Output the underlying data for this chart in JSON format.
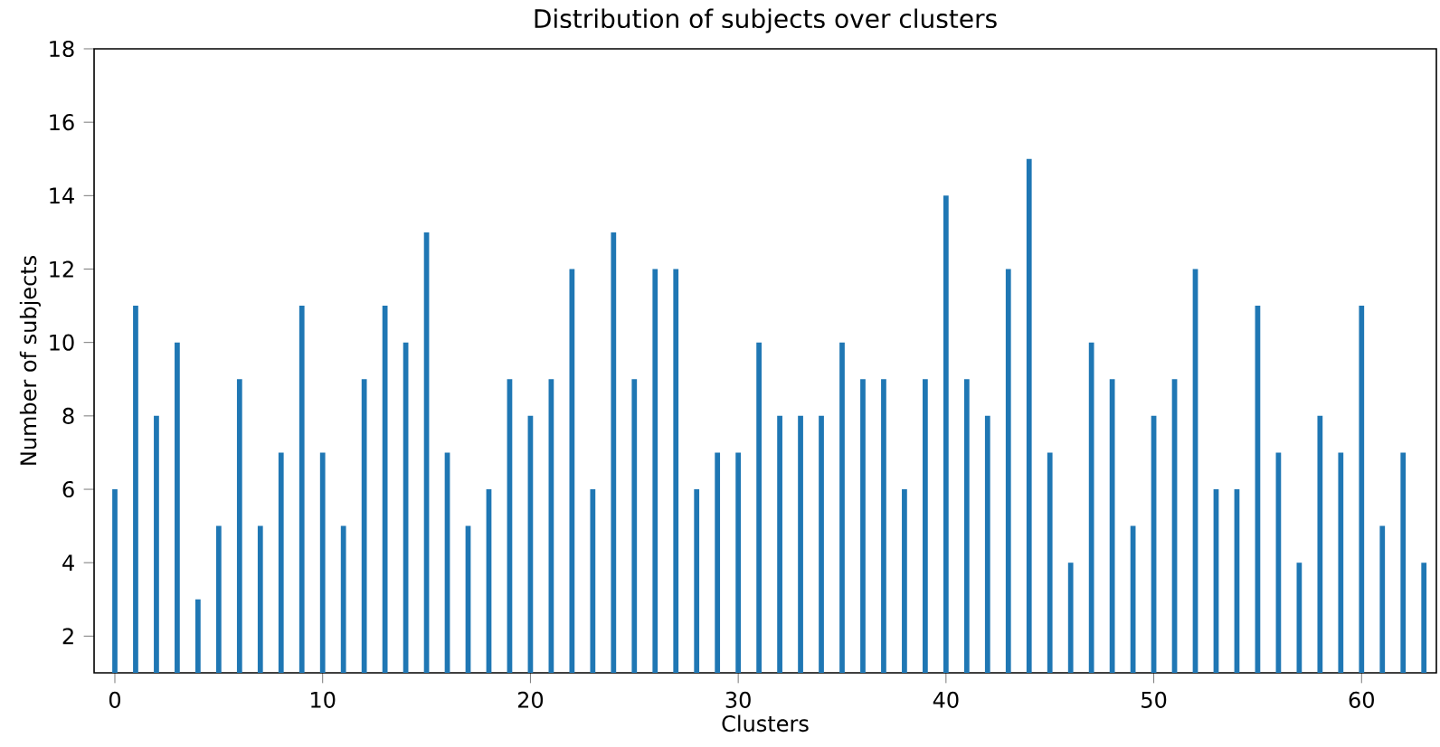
{
  "chart_data": {
    "type": "bar",
    "title": "Distribution of subjects over clusters",
    "xlabel": "Clusters",
    "ylabel": "Number of subjects",
    "color": "#1f77b4",
    "x": [
      0,
      1,
      2,
      3,
      4,
      5,
      6,
      7,
      8,
      9,
      10,
      11,
      12,
      13,
      14,
      15,
      16,
      17,
      18,
      19,
      20,
      21,
      22,
      23,
      24,
      25,
      26,
      27,
      28,
      29,
      30,
      31,
      32,
      33,
      34,
      35,
      36,
      37,
      38,
      39,
      40,
      41,
      42,
      43,
      44,
      45,
      46,
      47,
      48,
      49,
      50,
      51,
      52,
      53,
      54,
      55,
      56,
      57,
      58,
      59,
      60,
      61,
      62,
      63
    ],
    "values": [
      6,
      11,
      8,
      10,
      3,
      5,
      9,
      5,
      7,
      11,
      7,
      5,
      9,
      11,
      10,
      13,
      7,
      5,
      6,
      9,
      8,
      9,
      12,
      6,
      13,
      9,
      12,
      12,
      6,
      7,
      7,
      10,
      8,
      8,
      8,
      10,
      9,
      9,
      6,
      9,
      14,
      9,
      8,
      12,
      15,
      7,
      4,
      10,
      9,
      5,
      8,
      9,
      12,
      6,
      6,
      11,
      7,
      4,
      8,
      7,
      11,
      5,
      7,
      4
    ],
    "xlim": [
      -1,
      63.6
    ],
    "ylim": [
      1,
      18
    ],
    "xticks": [
      0,
      10,
      20,
      30,
      40,
      50,
      60
    ],
    "yticks": [
      2,
      4,
      6,
      8,
      10,
      12,
      14,
      16,
      18
    ],
    "grid": false
  }
}
